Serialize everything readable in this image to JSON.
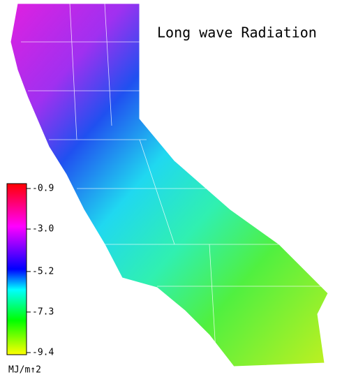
{
  "title": "Long wave Radiation",
  "colorbar": {
    "range": [
      -9.4,
      -0.9
    ],
    "ticks": [
      -0.9,
      {
        "value": -3,
        "label": "-3.0"
      },
      -5.2,
      -7.3,
      -9.4
    ],
    "unit": "MJ/m↑2"
  }
}
